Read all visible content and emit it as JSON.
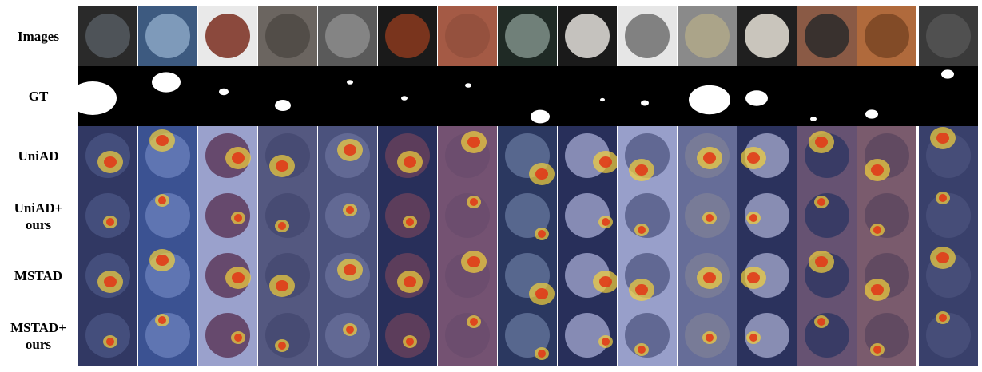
{
  "figure": {
    "row_labels": [
      "Images",
      "GT",
      "UniAD",
      "UniAD+\nours",
      "MSTAD",
      "MSTAD+\nours"
    ],
    "columns": [
      {
        "name": "bottle-icon",
        "bg": "#2a2a2a",
        "obj": "#555a60"
      },
      {
        "name": "cup-pills-icon",
        "bg": "#3d5a80",
        "obj": "#8aa6c4"
      },
      {
        "name": "capsule-icon",
        "bg": "#e9e9e9",
        "obj": "#7a2d1e"
      },
      {
        "name": "carpet-icon",
        "bg": "#6b6560",
        "obj": "#4e4944"
      },
      {
        "name": "grid-icon",
        "bg": "#5a5a5a",
        "obj": "#8c8c8c"
      },
      {
        "name": "hazelnut-icon",
        "bg": "#1a1a1a",
        "obj": "#8b3a1f"
      },
      {
        "name": "leather-icon",
        "bg": "#a45a45",
        "obj": "#93503d"
      },
      {
        "name": "metal-nut-icon",
        "bg": "#1f2a25",
        "obj": "#7f8f88"
      },
      {
        "name": "pill-icon",
        "bg": "#1a1a1a",
        "obj": "#e4e1dc"
      },
      {
        "name": "screw-icon",
        "bg": "#e6e6e6",
        "obj": "#6e6e6e"
      },
      {
        "name": "tile-icon",
        "bg": "#8a8a8a",
        "obj": "#b0a888"
      },
      {
        "name": "toothbrush-icon",
        "bg": "#1f1f1f",
        "obj": "#e8e3d8"
      },
      {
        "name": "transistor-icon",
        "bg": "#8a5a45",
        "obj": "#2a2a2a"
      },
      {
        "name": "wood-icon",
        "bg": "#b06a3c",
        "obj": "#7a4523"
      },
      {
        "name": "zipper-icon",
        "bg": "#3a3a3a",
        "obj": "#555"
      }
    ],
    "colors": {
      "heat_bg": "#3a4aa8",
      "heat_hot": "#e03b1a",
      "heat_mid": "#f4d23c",
      "gt_bg": "#000000",
      "gt_fg": "#ffffff"
    }
  }
}
